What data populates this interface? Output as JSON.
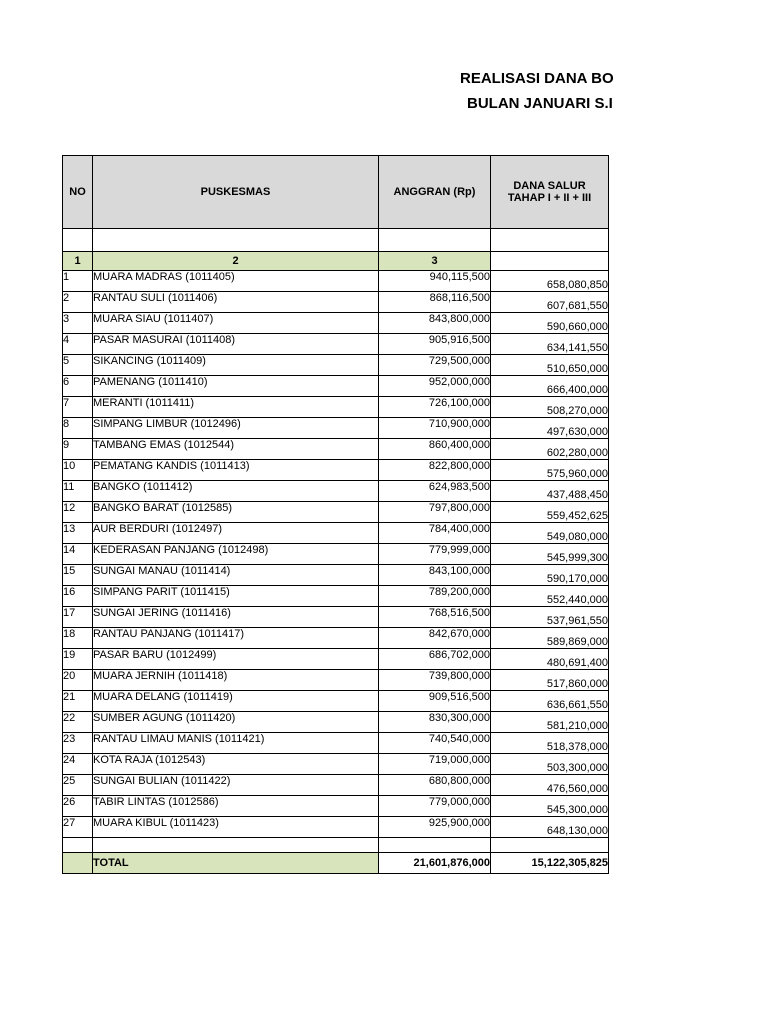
{
  "page": {
    "title_line1": "REALISASI DANA BO",
    "title_line2": "BULAN JANUARI S.I"
  },
  "table": {
    "headers": {
      "no": "NO",
      "puskesmas": "PUSKESMAS",
      "anggran": "ANGGRAN (Rp)",
      "dana_salur_line1": "DANA SALUR",
      "dana_salur_line2": "TAHAP I + II + III"
    },
    "column_numbers": {
      "c1": "1",
      "c2": "2",
      "c3": "3",
      "c4": ""
    },
    "rows": [
      {
        "no": "1",
        "name": "MUARA MADRAS (1011405)",
        "anggran": "940,115,500",
        "dana_salur": "658,080,850"
      },
      {
        "no": "2",
        "name": "RANTAU SULI (1011406)",
        "anggran": "868,116,500",
        "dana_salur": "607,681,550"
      },
      {
        "no": "3",
        "name": "MUARA SIAU (1011407)",
        "anggran": "843,800,000",
        "dana_salur": "590,660,000"
      },
      {
        "no": "4",
        "name": "PASAR MASURAI (1011408)",
        "anggran": "905,916,500",
        "dana_salur": "634,141,550"
      },
      {
        "no": "5",
        "name": "SIKANCING (1011409)",
        "anggran": "729,500,000",
        "dana_salur": "510,650,000"
      },
      {
        "no": "6",
        "name": "PAMENANG (1011410)",
        "anggran": "952,000,000",
        "dana_salur": "666,400,000"
      },
      {
        "no": "7",
        "name": "MERANTI (1011411)",
        "anggran": "726,100,000",
        "dana_salur": "508,270,000"
      },
      {
        "no": "8",
        "name": "SIMPANG LIMBUR (1012496)",
        "anggran": "710,900,000",
        "dana_salur": "497,630,000"
      },
      {
        "no": "9",
        "name": "TAMBANG EMAS (1012544)",
        "anggran": "860,400,000",
        "dana_salur": "602,280,000"
      },
      {
        "no": "10",
        "name": "PEMATANG KANDIS (1011413)",
        "anggran": "822,800,000",
        "dana_salur": "575,960,000"
      },
      {
        "no": "11",
        "name": "BANGKO (1011412)",
        "anggran": "624,983,500",
        "dana_salur": "437,488,450"
      },
      {
        "no": "12",
        "name": "BANGKO BARAT (1012585)",
        "anggran": "797,800,000",
        "dana_salur": "559,452,625"
      },
      {
        "no": "13",
        "name": "AUR BERDURI  (1012497)",
        "anggran": "784,400,000",
        "dana_salur": "549,080,000"
      },
      {
        "no": "14",
        "name": "KEDERASAN PANJANG (1012498)",
        "anggran": "779,999,000",
        "dana_salur": "545,999,300"
      },
      {
        "no": "15",
        "name": "SUNGAI MANAU (1011414)",
        "anggran": "843,100,000",
        "dana_salur": "590,170,000"
      },
      {
        "no": "16",
        "name": "SIMPANG PARIT (1011415)",
        "anggran": "789,200,000",
        "dana_salur": "552,440,000"
      },
      {
        "no": "17",
        "name": "SUNGAI JERING (1011416)",
        "anggran": "768,516,500",
        "dana_salur": "537,961,550"
      },
      {
        "no": "18",
        "name": "RANTAU PANJANG (1011417)",
        "anggran": "842,670,000",
        "dana_salur": "589,869,000"
      },
      {
        "no": "19",
        "name": "PASAR BARU (1012499)",
        "anggran": "686,702,000",
        "dana_salur": "480,691,400"
      },
      {
        "no": "20",
        "name": "MUARA JERNIH  (1011418)",
        "anggran": "739,800,000",
        "dana_salur": "517,860,000"
      },
      {
        "no": "21",
        "name": "MUARA DELANG (1011419)",
        "anggran": "909,516,500",
        "dana_salur": "636,661,550"
      },
      {
        "no": "22",
        "name": "SUMBER AGUNG (1011420)",
        "anggran": "830,300,000",
        "dana_salur": "581,210,000"
      },
      {
        "no": "23",
        "name": "RANTAU LIMAU MANIS (1011421)",
        "anggran": "740,540,000",
        "dana_salur": "518,378,000"
      },
      {
        "no": "24",
        "name": "KOTA RAJA (1012543)",
        "anggran": "719,000,000",
        "dana_salur": "503,300,000"
      },
      {
        "no": "25",
        "name": "SUNGAI BULIAN (1011422)",
        "anggran": "680,800,000",
        "dana_salur": "476,560,000"
      },
      {
        "no": "26",
        "name": "TABIR LINTAS (1012586)",
        "anggran": "779,000,000",
        "dana_salur": "545,300,000"
      },
      {
        "no": "27",
        "name": "MUARA KIBUL (1011423)",
        "anggran": "925,900,000",
        "dana_salur": "648,130,000"
      }
    ],
    "total": {
      "label": "TOTAL",
      "anggran": "21,601,876,000",
      "dana_salur": "15,122,305,825"
    }
  },
  "colors": {
    "header_bg": "#d9d9d9",
    "green_bg": "#d8e4bc",
    "border": "#000000"
  }
}
